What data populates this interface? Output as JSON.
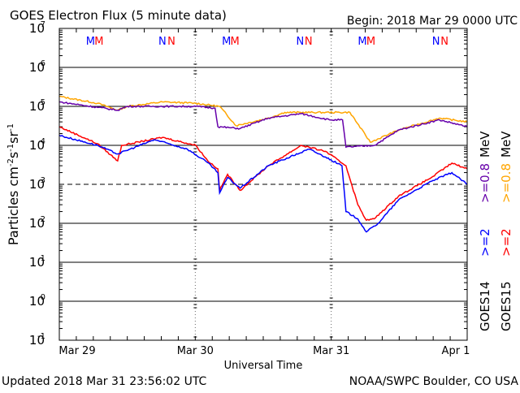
{
  "chart_data": {
    "type": "line",
    "title": "GOES Electron Flux (5 minute data)",
    "begin": "Begin: 2018 Mar 29 0000 UTC",
    "xlabel": "Universal Time",
    "ylabel_parts": {
      "a": "Particles cm",
      "b": "-2",
      "c": "s",
      "d": "-1",
      "e": "sr",
      "f": "-1"
    },
    "x_unit": "hours since 2018 Mar 29 0000 UTC",
    "xlim": [
      0,
      72
    ],
    "x_ticks": [
      {
        "x": 0,
        "label": "Mar 29"
      },
      {
        "x": 24,
        "label": "Mar 30"
      },
      {
        "x": 48,
        "label": "Mar 31"
      },
      {
        "x": 72,
        "label": "Apr 1"
      }
    ],
    "y_scale": "log",
    "ylim_exp": [
      -1,
      7
    ],
    "y_ticks": [
      {
        "exp": 7,
        "base": "10",
        "sup": "7"
      },
      {
        "exp": 6,
        "base": "10",
        "sup": "6"
      },
      {
        "exp": 5,
        "base": "10",
        "sup": "5"
      },
      {
        "exp": 4,
        "base": "10",
        "sup": "4"
      },
      {
        "exp": 3,
        "base": "10",
        "sup": "3"
      },
      {
        "exp": 2,
        "base": "10",
        "sup": "2"
      },
      {
        "exp": 1,
        "base": "10",
        "sup": "1"
      },
      {
        "exp": 0,
        "base": "10",
        "sup": "0"
      },
      {
        "exp": -1,
        "base": "10",
        "sup": "-1"
      }
    ],
    "threshold": {
      "value": 1000,
      "style": "dashed"
    },
    "markers": [
      {
        "x": 5.5,
        "label": "M",
        "color": "#0000ff"
      },
      {
        "x": 7.0,
        "label": "M",
        "color": "#ff0000"
      },
      {
        "x": 18.2,
        "label": "N",
        "color": "#0000ff"
      },
      {
        "x": 19.8,
        "label": "N",
        "color": "#ff0000"
      },
      {
        "x": 29.5,
        "label": "M",
        "color": "#0000ff"
      },
      {
        "x": 31.0,
        "label": "M",
        "color": "#ff0000"
      },
      {
        "x": 42.5,
        "label": "N",
        "color": "#0000ff"
      },
      {
        "x": 44.0,
        "label": "N",
        "color": "#ff0000"
      },
      {
        "x": 53.5,
        "label": "M",
        "color": "#0000ff"
      },
      {
        "x": 55.0,
        "label": "M",
        "color": "#ff0000"
      },
      {
        "x": 66.5,
        "label": "N",
        "color": "#0000ff"
      },
      {
        "x": 68.0,
        "label": "N",
        "color": "#ff0000"
      }
    ],
    "legend_position": "right (vertical)",
    "legend": {
      "goes14": "GOES14",
      "goes15": "GOES15",
      "g14_2": ">=2",
      "g15_2": ">=2",
      "g14_08": ">=0.8",
      "g15_08": ">=0.8",
      "mev1": "MeV",
      "mev2": "MeV"
    },
    "series": [
      {
        "name": "GOES15 >=0.8 MeV",
        "color": "#ffa500",
        "points": [
          [
            0,
            180000.0
          ],
          [
            6.75,
            120000.0
          ],
          [
            10.3,
            80000.0
          ],
          [
            12,
            100000.0
          ],
          [
            18.2,
            130000.0
          ],
          [
            24.1,
            120000.0
          ],
          [
            28.3,
            100000.0
          ],
          [
            31.2,
            32000.0
          ],
          [
            36.9,
            50000.0
          ],
          [
            39.8,
            70000.0
          ],
          [
            47,
            70000.0
          ],
          [
            51.3,
            70000.0
          ],
          [
            54.9,
            12000.0
          ],
          [
            60,
            25000.0
          ],
          [
            67.1,
            50000.0
          ],
          [
            72,
            40000.0
          ]
        ]
      },
      {
        "name": "GOES14 >=0.8 MeV",
        "color": "#6600aa",
        "points": [
          [
            0,
            130000.0
          ],
          [
            10.3,
            80000.0
          ],
          [
            12,
            100000.0
          ],
          [
            24.1,
            100000.0
          ],
          [
            27.5,
            90000.0
          ],
          [
            28,
            30000.0
          ],
          [
            31.9,
            27000.0
          ],
          [
            36.9,
            50000.0
          ],
          [
            42.7,
            65000.0
          ],
          [
            47.7,
            45000.0
          ],
          [
            50,
            45000.0
          ],
          [
            50.6,
            9000.0
          ],
          [
            55.6,
            10000.0
          ],
          [
            60,
            25000.0
          ],
          [
            67.1,
            45000.0
          ],
          [
            72,
            30000.0
          ]
        ]
      },
      {
        "name": "GOES15 >=2 MeV",
        "color": "#ff0000",
        "points": [
          [
            0,
            30000.0
          ],
          [
            6.75,
            11000.0
          ],
          [
            10.3,
            4000.0
          ],
          [
            11,
            10000.0
          ],
          [
            18.2,
            16000.0
          ],
          [
            24.1,
            10000.0
          ],
          [
            26.2,
            4000.0
          ],
          [
            28,
            2500.0
          ],
          [
            28.3,
            700.0
          ],
          [
            29.7,
            1800.0
          ],
          [
            31.9,
            700.0
          ],
          [
            36.9,
            3000.0
          ],
          [
            42.7,
            10000.0
          ],
          [
            47,
            7000.0
          ],
          [
            50.6,
            3000.0
          ],
          [
            52.7,
            300.0
          ],
          [
            54.2,
            120.0
          ],
          [
            55.6,
            130.0
          ],
          [
            59.9,
            500.0
          ],
          [
            65.7,
            1500.0
          ],
          [
            69.3,
            3500.0
          ],
          [
            72,
            2500.0
          ]
        ]
      },
      {
        "name": "GOES14 >=2 MeV",
        "color": "#0000ff",
        "points": [
          [
            0,
            18000.0
          ],
          [
            6.75,
            10000.0
          ],
          [
            10.3,
            6000.0
          ],
          [
            16.8,
            14000.0
          ],
          [
            22.6,
            8000.0
          ],
          [
            26.2,
            3600.0
          ],
          [
            28,
            2000.0
          ],
          [
            28.3,
            600.0
          ],
          [
            29.7,
            1500.0
          ],
          [
            31.9,
            800.0
          ],
          [
            36.9,
            3000.0
          ],
          [
            44.1,
            8000.0
          ],
          [
            47,
            5000.0
          ],
          [
            49.9,
            3000.0
          ],
          [
            50.6,
            200.0
          ],
          [
            52.7,
            130.0
          ],
          [
            54.2,
            60.0
          ],
          [
            56.3,
            100.0
          ],
          [
            59.9,
            400.0
          ],
          [
            65.7,
            1200.0
          ],
          [
            69.3,
            2000.0
          ],
          [
            72,
            1000.0
          ]
        ]
      }
    ]
  },
  "footer": {
    "updated": "Updated 2018 Mar 31 23:56:02 UTC",
    "credit": "NOAA/SWPC Boulder, CO USA"
  }
}
